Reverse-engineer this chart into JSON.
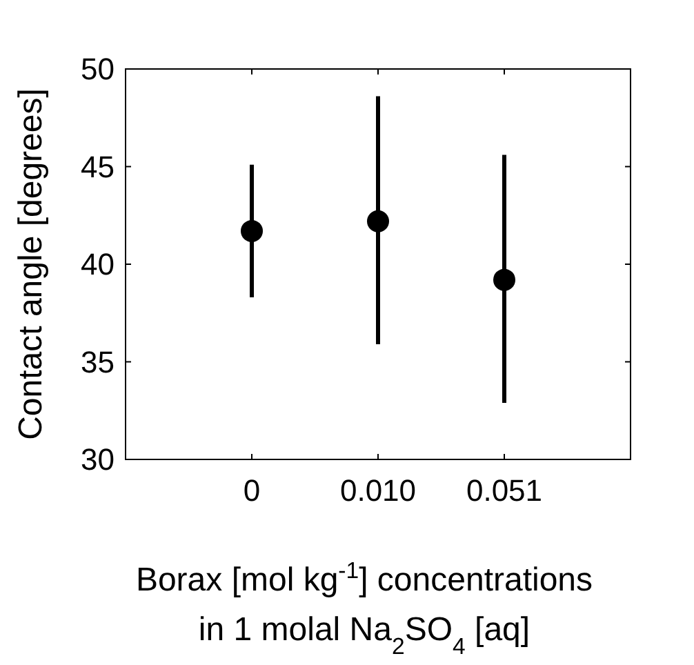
{
  "chart_data": {
    "type": "scatter",
    "ylabel": "Contact angle [degrees]",
    "xlabel": "Borax [mol kg$^{-1}$] concentrations\nin 1 molal Na$_{2}$SO$_{4}$ [aq]",
    "categories": [
      "0",
      "0.010",
      "0.051"
    ],
    "values": [
      41.7,
      42.2,
      39.2
    ],
    "errors": [
      [
        38.3,
        45.1
      ],
      [
        35.9,
        48.6
      ],
      [
        32.9,
        45.6
      ]
    ],
    "color": "#000000",
    "marker": "circle",
    "ylim": [
      30,
      50
    ],
    "yticks": [
      30,
      35,
      40,
      45,
      50
    ],
    "grid": false
  }
}
